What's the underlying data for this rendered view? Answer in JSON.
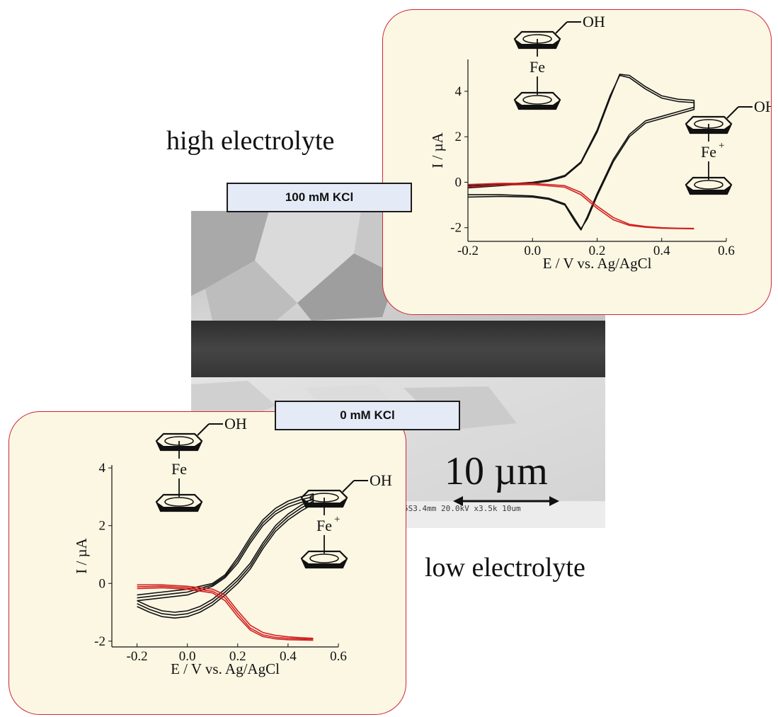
{
  "captions": {
    "high": "high electrolyte",
    "low": "low electrolyte"
  },
  "labels": {
    "high_kcl": "100 mM KCl",
    "low_kcl": "0 mM KCl"
  },
  "sem": {
    "scale_bar": "10 µm",
    "info_text": "5S3.4mm 20.0kV x3.5k  10um"
  },
  "molecules": {
    "neutral_metal": "Fe",
    "oxidized_metal": "Fe",
    "oxidized_charge": "+",
    "substituent": "OH"
  },
  "colors": {
    "panel_bg": "#fbf7e3",
    "panel_border": "#d0243a",
    "label_bg": "#e4eaf6",
    "cv_black": "#111111",
    "cv_red": "#d21f1f"
  },
  "chart_data": [
    {
      "type": "line",
      "panel": "high electrolyte (100 mM KCl)",
      "xlabel": "E / V vs. Ag/AgCl",
      "ylabel": "I / µA",
      "xlim": [
        -0.2,
        0.6
      ],
      "ylim": [
        -2.6,
        5.4
      ],
      "xticks": [
        -0.2,
        0.0,
        0.2,
        0.4,
        0.6
      ],
      "xtick_labels": [
        "-0.2",
        "0.0",
        "0.2",
        "0.4",
        "0.6"
      ],
      "yticks": [
        -2,
        0,
        2,
        4
      ],
      "ytick_labels": [
        "-2",
        "0",
        "2",
        "4"
      ],
      "series": [
        {
          "color": "#111111",
          "x": [
            -0.2,
            -0.1,
            0.0,
            0.05,
            0.1,
            0.15,
            0.2,
            0.24,
            0.27,
            0.3,
            0.35,
            0.4,
            0.45,
            0.5,
            0.5,
            0.45,
            0.4,
            0.35,
            0.3,
            0.25,
            0.2,
            0.17,
            0.15,
            0.13,
            0.1,
            0.05,
            0.0,
            -0.1,
            -0.2
          ],
          "y": [
            -0.15,
            -0.1,
            0.0,
            0.1,
            0.3,
            0.9,
            2.3,
            3.8,
            4.7,
            4.6,
            4.1,
            3.7,
            3.55,
            3.5,
            3.2,
            3.0,
            2.8,
            2.6,
            2.0,
            0.9,
            -0.6,
            -1.6,
            -2.05,
            -1.6,
            -0.95,
            -0.7,
            -0.6,
            -0.55,
            -0.55
          ]
        },
        {
          "color": "#111111",
          "x": [
            -0.2,
            -0.1,
            0.0,
            0.05,
            0.1,
            0.15,
            0.2,
            0.24,
            0.27,
            0.3,
            0.35,
            0.4,
            0.45,
            0.5,
            0.5,
            0.45,
            0.4,
            0.35,
            0.3,
            0.25,
            0.2,
            0.17,
            0.15,
            0.13,
            0.1,
            0.05,
            0.0,
            -0.1,
            -0.2
          ],
          "y": [
            -0.25,
            -0.15,
            -0.05,
            0.05,
            0.25,
            0.85,
            2.2,
            3.7,
            4.75,
            4.7,
            4.2,
            3.8,
            3.65,
            3.6,
            3.3,
            3.1,
            2.9,
            2.7,
            2.1,
            1.0,
            -0.5,
            -1.5,
            -2.1,
            -1.7,
            -1.0,
            -0.75,
            -0.65,
            -0.62,
            -0.65
          ]
        },
        {
          "color": "#d21f1f",
          "x": [
            -0.2,
            -0.1,
            0.0,
            0.1,
            0.15,
            0.2,
            0.25,
            0.3,
            0.35,
            0.4,
            0.45,
            0.5
          ],
          "y": [
            -0.1,
            -0.05,
            -0.05,
            -0.15,
            -0.45,
            -1.05,
            -1.55,
            -1.85,
            -1.95,
            -2.0,
            -2.02,
            -2.03
          ]
        },
        {
          "color": "#d21f1f",
          "x": [
            -0.2,
            -0.1,
            0.0,
            0.1,
            0.15,
            0.2,
            0.25,
            0.3,
            0.35,
            0.4,
            0.45,
            0.5
          ],
          "y": [
            -0.2,
            -0.12,
            -0.1,
            -0.22,
            -0.55,
            -1.15,
            -1.65,
            -1.9,
            -1.98,
            -2.02,
            -2.04,
            -2.05
          ]
        }
      ]
    },
    {
      "type": "line",
      "panel": "low electrolyte (0 mM KCl)",
      "xlabel": "E / V vs. Ag/AgCl",
      "ylabel": "I / µA",
      "xlim": [
        -0.3,
        0.6
      ],
      "ylim": [
        -2.2,
        4.1
      ],
      "xticks": [
        -0.2,
        0.0,
        0.2,
        0.4,
        0.6
      ],
      "xtick_labels": [
        "-0.2",
        "0.0",
        "0.2",
        "0.4",
        "0.6"
      ],
      "yticks": [
        -2,
        0,
        2,
        4
      ],
      "ytick_labels": [
        "-2",
        "0",
        "2",
        "4"
      ],
      "series": [
        {
          "color": "#111111",
          "x": [
            -0.2,
            -0.1,
            0.0,
            0.1,
            0.15,
            0.2,
            0.25,
            0.3,
            0.35,
            0.4,
            0.45,
            0.5,
            0.5,
            0.45,
            0.4,
            0.35,
            0.3,
            0.25,
            0.2,
            0.15,
            0.1,
            0.05,
            0.0,
            -0.05,
            -0.1,
            -0.15,
            -0.2
          ],
          "y": [
            -0.4,
            -0.3,
            -0.2,
            0.0,
            0.3,
            0.9,
            1.6,
            2.2,
            2.6,
            2.85,
            3.0,
            3.1,
            2.95,
            2.7,
            2.4,
            2.0,
            1.4,
            0.7,
            0.2,
            -0.2,
            -0.55,
            -0.8,
            -0.95,
            -1.0,
            -0.95,
            -0.8,
            -0.6
          ]
        },
        {
          "color": "#111111",
          "x": [
            -0.2,
            -0.1,
            0.0,
            0.1,
            0.15,
            0.2,
            0.25,
            0.3,
            0.35,
            0.4,
            0.45,
            0.5,
            0.5,
            0.45,
            0.4,
            0.35,
            0.3,
            0.25,
            0.2,
            0.15,
            0.1,
            0.05,
            0.0,
            -0.05,
            -0.1,
            -0.15,
            -0.2
          ],
          "y": [
            -0.5,
            -0.4,
            -0.3,
            -0.05,
            0.25,
            0.8,
            1.5,
            2.1,
            2.5,
            2.75,
            2.9,
            3.0,
            2.85,
            2.6,
            2.3,
            1.9,
            1.3,
            0.6,
            0.1,
            -0.3,
            -0.65,
            -0.9,
            -1.05,
            -1.1,
            -1.05,
            -0.9,
            -0.7
          ]
        },
        {
          "color": "#111111",
          "x": [
            -0.2,
            -0.1,
            0.0,
            0.1,
            0.15,
            0.2,
            0.25,
            0.3,
            0.35,
            0.4,
            0.45,
            0.5,
            0.5,
            0.45,
            0.4,
            0.35,
            0.3,
            0.25,
            0.2,
            0.15,
            0.1,
            0.05,
            0.0,
            -0.05,
            -0.1,
            -0.15,
            -0.2
          ],
          "y": [
            -0.6,
            -0.5,
            -0.4,
            -0.1,
            0.2,
            0.7,
            1.4,
            2.0,
            2.4,
            2.65,
            2.8,
            2.9,
            2.75,
            2.5,
            2.2,
            1.8,
            1.2,
            0.5,
            0.0,
            -0.4,
            -0.75,
            -1.0,
            -1.15,
            -1.2,
            -1.15,
            -1.0,
            -0.8
          ]
        },
        {
          "color": "#d21f1f",
          "x": [
            -0.2,
            -0.1,
            0.0,
            0.1,
            0.15,
            0.2,
            0.25,
            0.3,
            0.35,
            0.4,
            0.45,
            0.5
          ],
          "y": [
            -0.05,
            -0.05,
            -0.1,
            -0.2,
            -0.4,
            -0.95,
            -1.45,
            -1.7,
            -1.8,
            -1.85,
            -1.88,
            -1.9
          ]
        },
        {
          "color": "#d21f1f",
          "x": [
            -0.2,
            -0.1,
            0.0,
            0.1,
            0.15,
            0.2,
            0.25,
            0.3,
            0.35,
            0.4,
            0.45,
            0.5
          ],
          "y": [
            -0.12,
            -0.1,
            -0.15,
            -0.27,
            -0.5,
            -1.05,
            -1.55,
            -1.78,
            -1.87,
            -1.9,
            -1.92,
            -1.93
          ]
        },
        {
          "color": "#d21f1f",
          "x": [
            -0.2,
            -0.1,
            0.0,
            0.1,
            0.15,
            0.2,
            0.25,
            0.3,
            0.35,
            0.4,
            0.45,
            0.5
          ],
          "y": [
            -0.18,
            -0.15,
            -0.2,
            -0.33,
            -0.6,
            -1.15,
            -1.62,
            -1.84,
            -1.92,
            -1.95,
            -1.96,
            -1.97
          ]
        }
      ]
    }
  ]
}
